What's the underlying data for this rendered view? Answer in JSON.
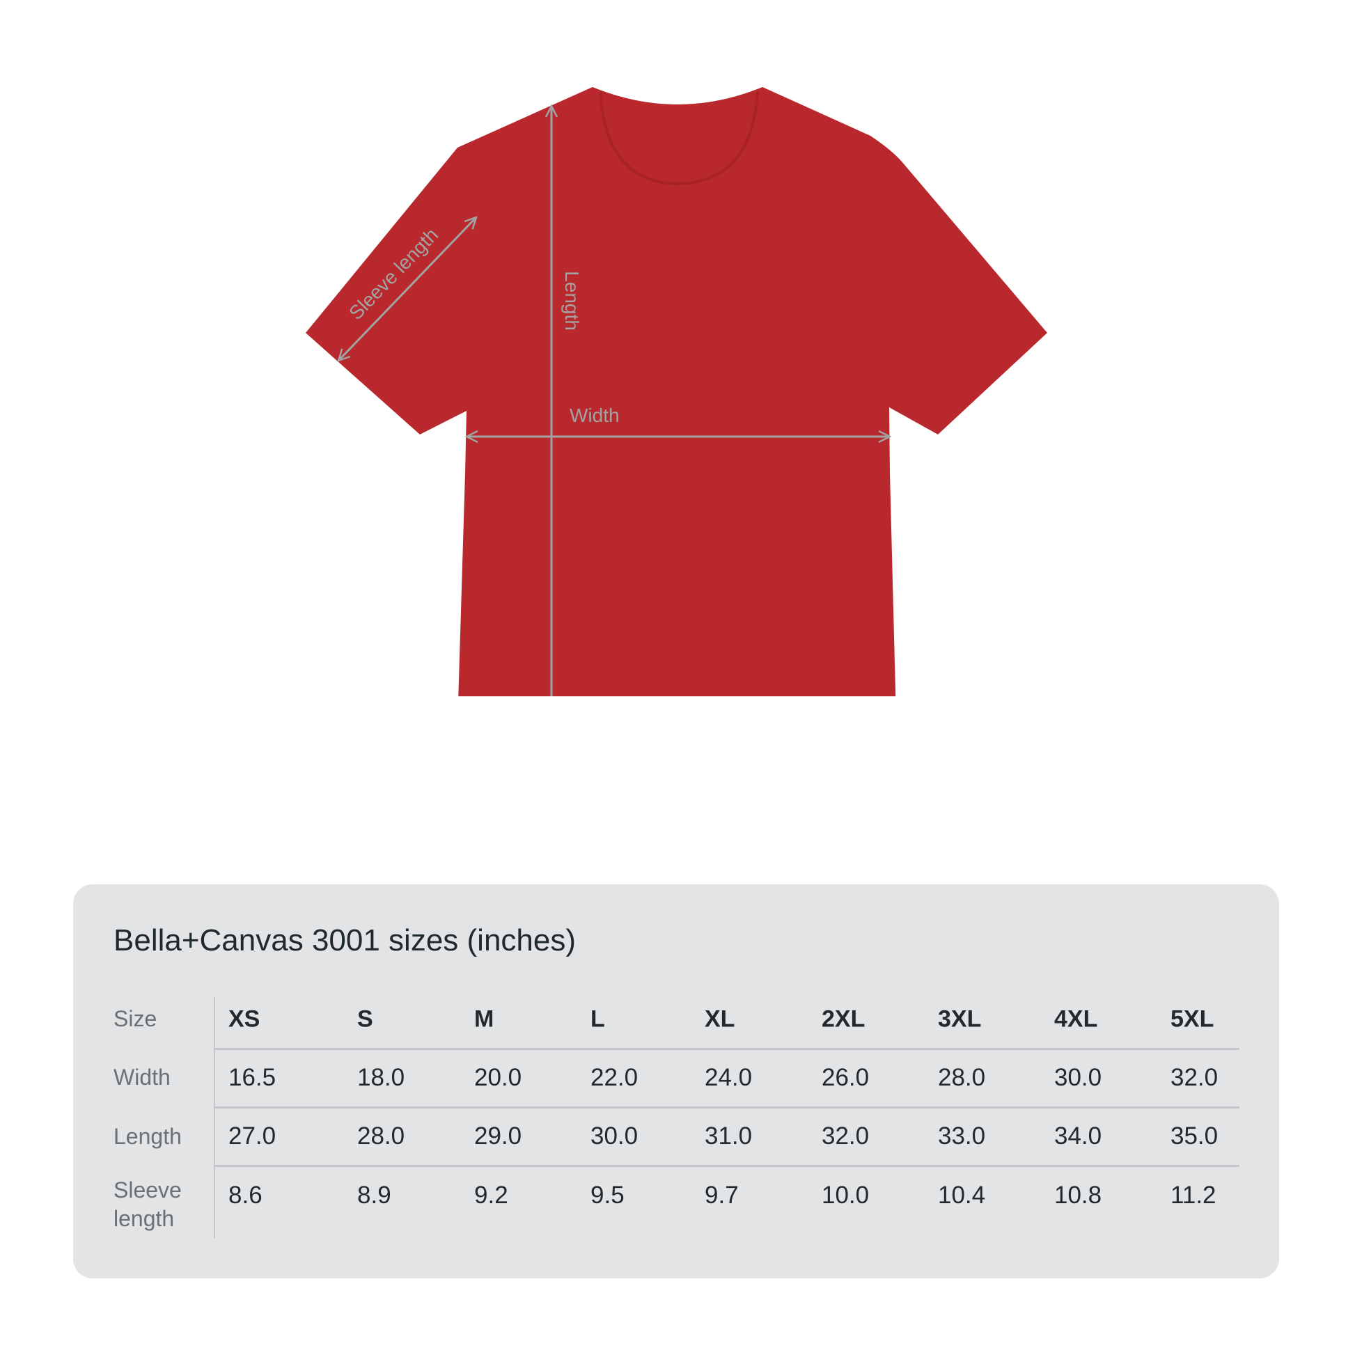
{
  "product_image": {
    "shirt_color": "#b8282c",
    "measure_line_color": "#a3a3a3",
    "labels": {
      "sleeve": "Sleeve length",
      "length": "Length",
      "width": "Width"
    }
  },
  "size_table": {
    "title": "Bella+Canvas 3001 sizes (inches)",
    "row_labels": {
      "size": "Size",
      "width": "Width",
      "length": "Length",
      "sleeve_1": "Sleeve",
      "sleeve_2": "length"
    },
    "sizes": [
      "XS",
      "S",
      "M",
      "L",
      "XL",
      "2XL",
      "3XL",
      "4XL",
      "5XL"
    ],
    "width": [
      "16.5",
      "18.0",
      "20.0",
      "22.0",
      "24.0",
      "26.0",
      "28.0",
      "30.0",
      "32.0"
    ],
    "length": [
      "27.0",
      "28.0",
      "29.0",
      "30.0",
      "31.0",
      "32.0",
      "33.0",
      "34.0",
      "35.0"
    ],
    "sleeve_length": [
      "8.6",
      "8.9",
      "9.2",
      "9.5",
      "9.7",
      "10.0",
      "10.4",
      "10.8",
      "11.2"
    ]
  }
}
